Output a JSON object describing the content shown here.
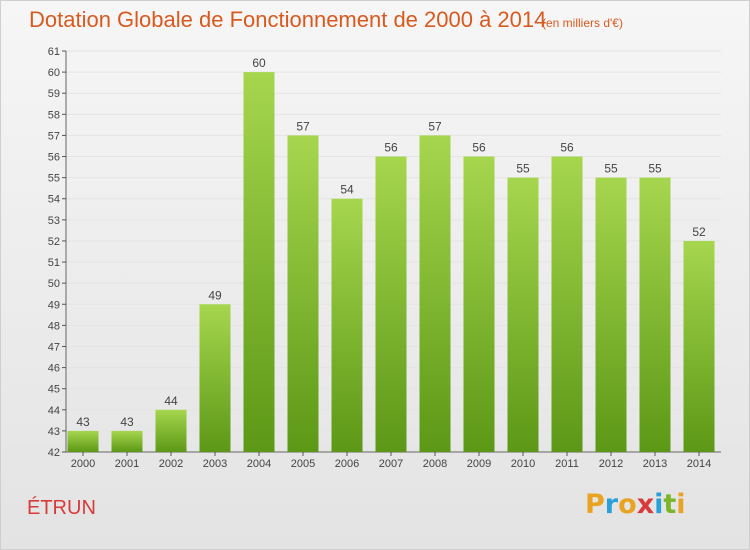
{
  "header": {
    "title": "Dotation Globale de Fonctionnement de 2000 à 2014",
    "subtitle": "(en milliers d'€)"
  },
  "footer": {
    "place": "ÉTRUN",
    "logo": "Proxiti",
    "logo_colors": [
      "#e8a322",
      "#2aa0d8",
      "#e8a322",
      "#d83a3a",
      "#2aa0d8",
      "#7ab52a",
      "#e8a322"
    ]
  },
  "colors": {
    "bar_top": "#a6d64e",
    "bar_bottom": "#5c9816",
    "title": "#d85a1e",
    "place": "#d83a3a"
  },
  "chart_data": {
    "type": "bar",
    "title": "Dotation Globale de Fonctionnement de 2000 à 2014",
    "subtitle": "(en milliers d'€)",
    "xlabel": "",
    "ylabel": "",
    "categories": [
      "2000",
      "2001",
      "2002",
      "2003",
      "2004",
      "2005",
      "2006",
      "2007",
      "2008",
      "2009",
      "2010",
      "2011",
      "2012",
      "2013",
      "2014"
    ],
    "values": [
      43,
      43,
      44,
      49,
      60,
      57,
      54,
      56,
      57,
      56,
      55,
      56,
      55,
      55,
      52
    ],
    "ylim": [
      42,
      61
    ],
    "yticks": [
      42,
      43,
      44,
      45,
      46,
      47,
      48,
      49,
      50,
      51,
      52,
      53,
      54,
      55,
      56,
      57,
      58,
      59,
      60,
      61
    ],
    "grid": true,
    "legend": "none"
  }
}
